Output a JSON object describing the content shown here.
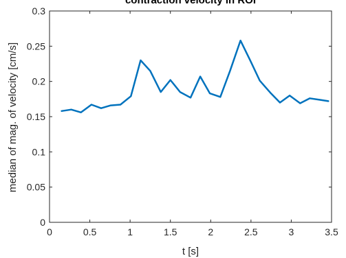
{
  "chart_data": {
    "type": "line",
    "title": "contraction velocity in ROI",
    "xlabel": "t [s]",
    "ylabel": "median of mag. of velocity [cm/s]",
    "xlim": [
      0,
      3.5
    ],
    "ylim": [
      0,
      0.3
    ],
    "xticks": [
      0,
      0.5,
      1,
      1.5,
      2,
      2.5,
      3,
      3.5
    ],
    "yticks": [
      0,
      0.05,
      0.1,
      0.15,
      0.2,
      0.25,
      0.3
    ],
    "xtick_labels": [
      "0",
      "0.5",
      "1",
      "1.5",
      "2",
      "2.5",
      "3",
      "3.5"
    ],
    "ytick_labels": [
      "0",
      "0.05",
      "0.1",
      "0.15",
      "0.2",
      "0.25",
      "0.3"
    ],
    "grid": false,
    "line_color": "#0072BD",
    "series": [
      {
        "x": [
          0.15,
          0.27,
          0.39,
          0.52,
          0.64,
          0.76,
          0.88,
          1.01,
          1.13,
          1.25,
          1.38,
          1.5,
          1.62,
          1.75,
          1.87,
          1.99,
          2.12,
          2.24,
          2.37,
          2.49,
          2.61,
          2.74,
          2.86,
          2.98,
          3.11,
          3.23,
          3.35,
          3.46
        ],
        "values": [
          0.158,
          0.16,
          0.156,
          0.167,
          0.162,
          0.166,
          0.167,
          0.179,
          0.23,
          0.215,
          0.185,
          0.202,
          0.185,
          0.177,
          0.207,
          0.183,
          0.178,
          0.215,
          0.258,
          0.23,
          0.201,
          0.184,
          0.17,
          0.18,
          0.169,
          0.176,
          0.174,
          0.172
        ]
      }
    ]
  }
}
